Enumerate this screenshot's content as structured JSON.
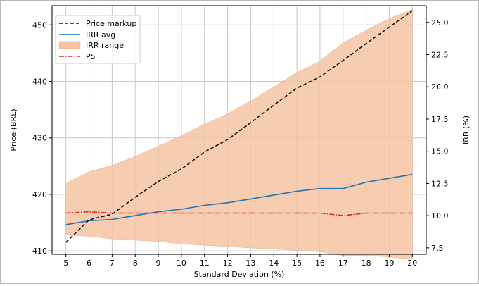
{
  "chart_data": {
    "type": "line",
    "title": "",
    "xlabel": "Standard Deviation (%)",
    "ylabel_left": "Price (BRL)",
    "ylabel_right": "IRR (%)",
    "x": [
      5,
      6,
      7,
      8,
      9,
      10,
      11,
      12,
      13,
      14,
      15,
      16,
      17,
      18,
      19,
      20
    ],
    "x_ticks": [
      "5",
      "6",
      "7",
      "8",
      "9",
      "10",
      "11",
      "12",
      "13",
      "14",
      "15",
      "16",
      "17",
      "18",
      "19",
      "20"
    ],
    "xlim": [
      4.4,
      20.6
    ],
    "ylim_left": [
      409.4,
      453.4
    ],
    "yticks_left": [
      "410",
      "420",
      "430",
      "440",
      "450"
    ],
    "ylim_right": [
      7.0,
      26.3
    ],
    "yticks_right": [
      "7.5",
      "10.0",
      "12.5",
      "15.0",
      "17.5",
      "20.0",
      "22.5",
      "25.0"
    ],
    "grid": true,
    "legend_position": "top-left",
    "series": [
      {
        "name": "Price markup",
        "axis": "left",
        "style": "dashed",
        "color": "#111111",
        "values": [
          411.5,
          415.5,
          416.5,
          419.5,
          422.3,
          424.5,
          427.5,
          429.7,
          432.7,
          435.8,
          438.8,
          440.8,
          443.7,
          446.7,
          449.6,
          452.5
        ]
      },
      {
        "name": "IRR avg",
        "axis": "right",
        "style": "solid",
        "color": "#1f77b4",
        "values": [
          9.3,
          9.6,
          9.7,
          10.0,
          10.3,
          10.5,
          10.8,
          11.0,
          11.3,
          11.6,
          11.9,
          12.1,
          12.1,
          12.6,
          12.9,
          13.2
        ]
      },
      {
        "name": "IRR range",
        "axis": "right",
        "style": "band",
        "color": "#f5c4a2",
        "upper": [
          12.5,
          13.4,
          13.9,
          14.6,
          15.4,
          16.2,
          17.1,
          17.9,
          18.9,
          20.0,
          21.1,
          22.0,
          23.4,
          24.4,
          25.3,
          26.0
        ],
        "lower": [
          8.5,
          8.4,
          8.2,
          8.1,
          8.0,
          7.8,
          7.7,
          7.6,
          7.5,
          7.4,
          7.3,
          7.2,
          6.9,
          6.9,
          6.8,
          6.6
        ]
      },
      {
        "name": "P5",
        "axis": "right",
        "style": "dashdot",
        "color": "#e3261f",
        "values": [
          10.2,
          10.3,
          10.2,
          10.2,
          10.2,
          10.2,
          10.2,
          10.2,
          10.2,
          10.2,
          10.2,
          10.2,
          10.0,
          10.2,
          10.2,
          10.2
        ]
      }
    ]
  }
}
